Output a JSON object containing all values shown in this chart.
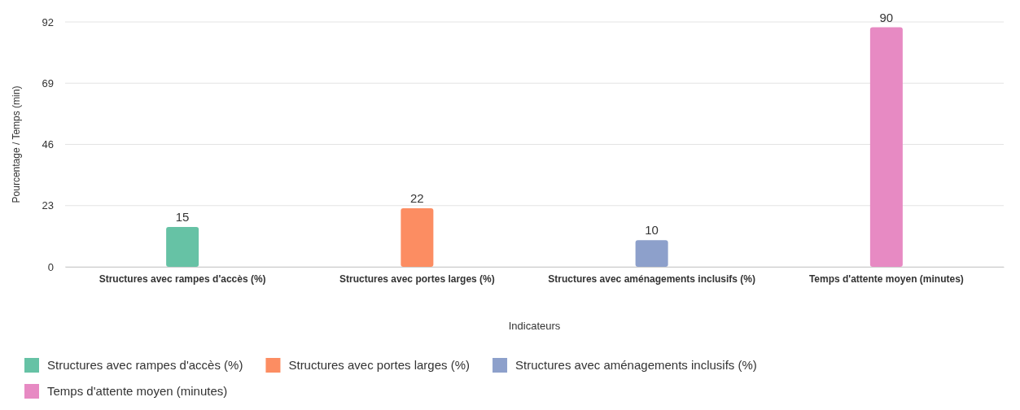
{
  "chart_data": {
    "type": "bar",
    "xlabel": "Indicateurs",
    "ylabel": "Pourcentage / Temps (min)",
    "categories": [
      "Structures avec rampes d'accès (%)",
      "Structures avec portes larges (%)",
      "Structures avec aménagements inclusifs (%)",
      "Temps d'attente moyen (minutes)"
    ],
    "series": [
      {
        "name": "Structures avec rampes d'accès (%)",
        "color": "#66c2a5",
        "values": [
          15,
          null,
          null,
          null
        ]
      },
      {
        "name": "Structures avec portes larges (%)",
        "color": "#fc8d62",
        "values": [
          null,
          22,
          null,
          null
        ]
      },
      {
        "name": "Structures avec aménagements inclusifs (%)",
        "color": "#8da0cb",
        "values": [
          null,
          null,
          10,
          null
        ]
      },
      {
        "name": "Temps d'attente moyen (minutes)",
        "color": "#e78ac3",
        "values": [
          null,
          null,
          null,
          90
        ]
      }
    ],
    "ylim": [
      0,
      92
    ],
    "yticks": [
      0,
      23,
      46,
      69,
      92
    ],
    "grid": "y",
    "legend": "bottom",
    "data_labels": true
  }
}
